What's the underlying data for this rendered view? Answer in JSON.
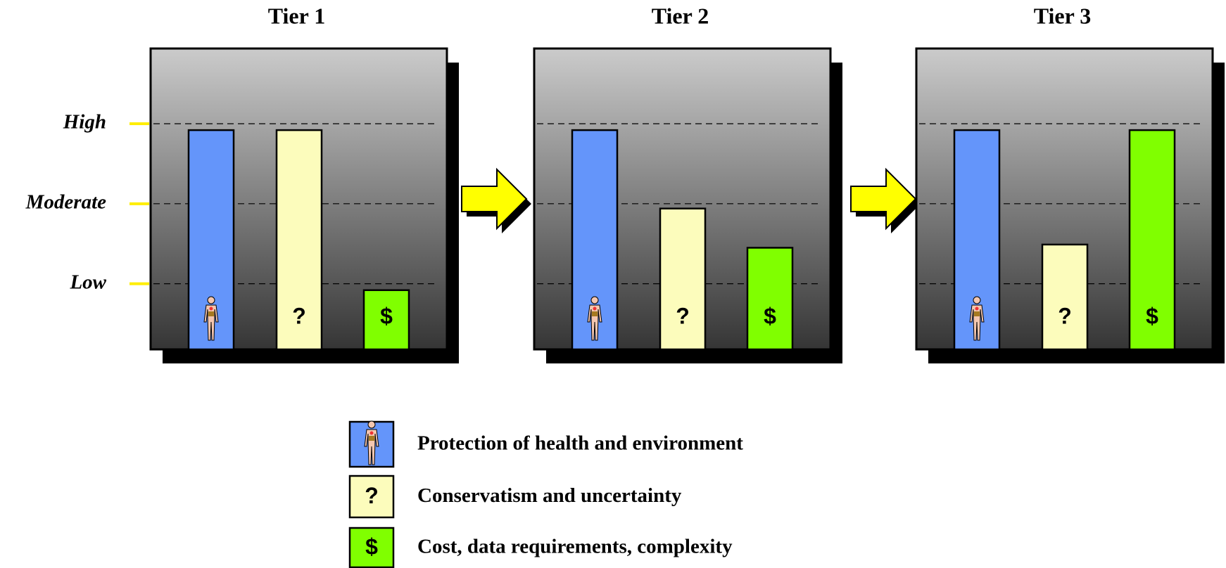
{
  "chart_data": {
    "type": "bar",
    "categories": [
      "Tier 1",
      "Tier 2",
      "Tier 3"
    ],
    "ylim": [
      0.18,
      3.94
    ],
    "yticks": [
      {
        "value": 1,
        "label": "Low"
      },
      {
        "value": 2,
        "label": "Moderate"
      },
      {
        "value": 3,
        "label": "High"
      }
    ],
    "grid": true,
    "series": [
      {
        "name": "Protection of health and environment",
        "color": "#6495fa",
        "values": [
          2.92,
          2.92,
          2.92
        ]
      },
      {
        "name": "Conservatism and uncertainty",
        "color": "#fcfcbc",
        "icon": "?",
        "values": [
          2.92,
          1.94,
          1.49
        ]
      },
      {
        "name": "Cost, data requirements, complexity",
        "color": "#80ff00",
        "icon": "$",
        "values": [
          0.92,
          1.45,
          2.92
        ]
      }
    ]
  }
}
